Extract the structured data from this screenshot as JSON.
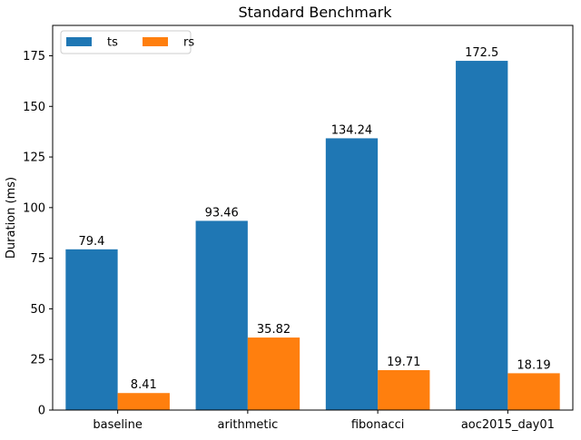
{
  "chart_data": {
    "type": "bar",
    "title": "Standard Benchmark",
    "xlabel": "",
    "ylabel": "Duration (ms)",
    "categories": [
      "baseline",
      "arithmetic",
      "fibonacci",
      "aoc2015_day01"
    ],
    "series": [
      {
        "name": "ts",
        "color": "#1f77b4",
        "values": [
          79.4,
          93.46,
          134.24,
          172.5
        ],
        "labels": [
          "79.4",
          "93.46",
          "134.24",
          "172.5"
        ]
      },
      {
        "name": "rs",
        "color": "#ff7f0e",
        "values": [
          8.41,
          35.82,
          19.71,
          18.19
        ],
        "labels": [
          "8.41",
          "35.82",
          "19.71",
          "18.19"
        ]
      }
    ],
    "ylim": [
      0,
      190
    ],
    "yticks": [
      0,
      25,
      50,
      75,
      100,
      125,
      150,
      175
    ],
    "grid": false,
    "legend": {
      "placement": "top-left",
      "columns": 2
    }
  }
}
